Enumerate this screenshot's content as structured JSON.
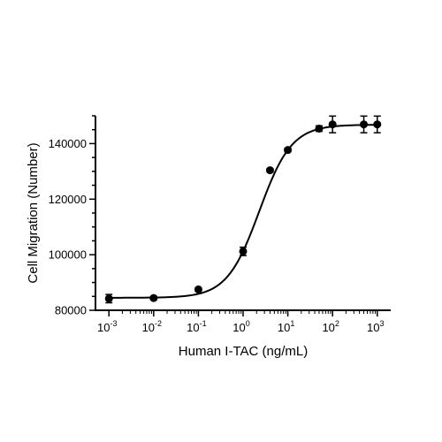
{
  "chart_data": {
    "type": "scatter",
    "title": "",
    "xlabel": "Human I-TAC (ng/mL)",
    "ylabel": "Cell Migration (Number)",
    "x_scale": "log",
    "x_tick_base": "10",
    "x_tick_exponents": [
      "-3",
      "-2",
      "-1",
      "0",
      "1",
      "2",
      "3"
    ],
    "xlim": [
      0.0005,
      2000
    ],
    "ylim": [
      80000,
      150000
    ],
    "y_ticks": [
      80000,
      100000,
      120000,
      140000
    ],
    "y_tick_labels": [
      "80000",
      "100000",
      "120000",
      "140000"
    ],
    "grid": false,
    "legend": "none",
    "series": [
      {
        "x": [
          0.001,
          0.01,
          0.1,
          1,
          4,
          10,
          50,
          100,
          500,
          1000
        ],
        "y": [
          84200,
          84400,
          87500,
          101200,
          130400,
          137700,
          145400,
          146900,
          146900,
          146900
        ],
        "error": [
          1500,
          600,
          600,
          1500,
          600,
          600,
          1000,
          3000,
          3000,
          3000
        ]
      }
    ],
    "fit_curve": {
      "model": "4-parameter logistic",
      "bottom": 84500,
      "top": 146800,
      "ec50": 2.3,
      "hill": 1.2
    },
    "color": "#000000"
  }
}
